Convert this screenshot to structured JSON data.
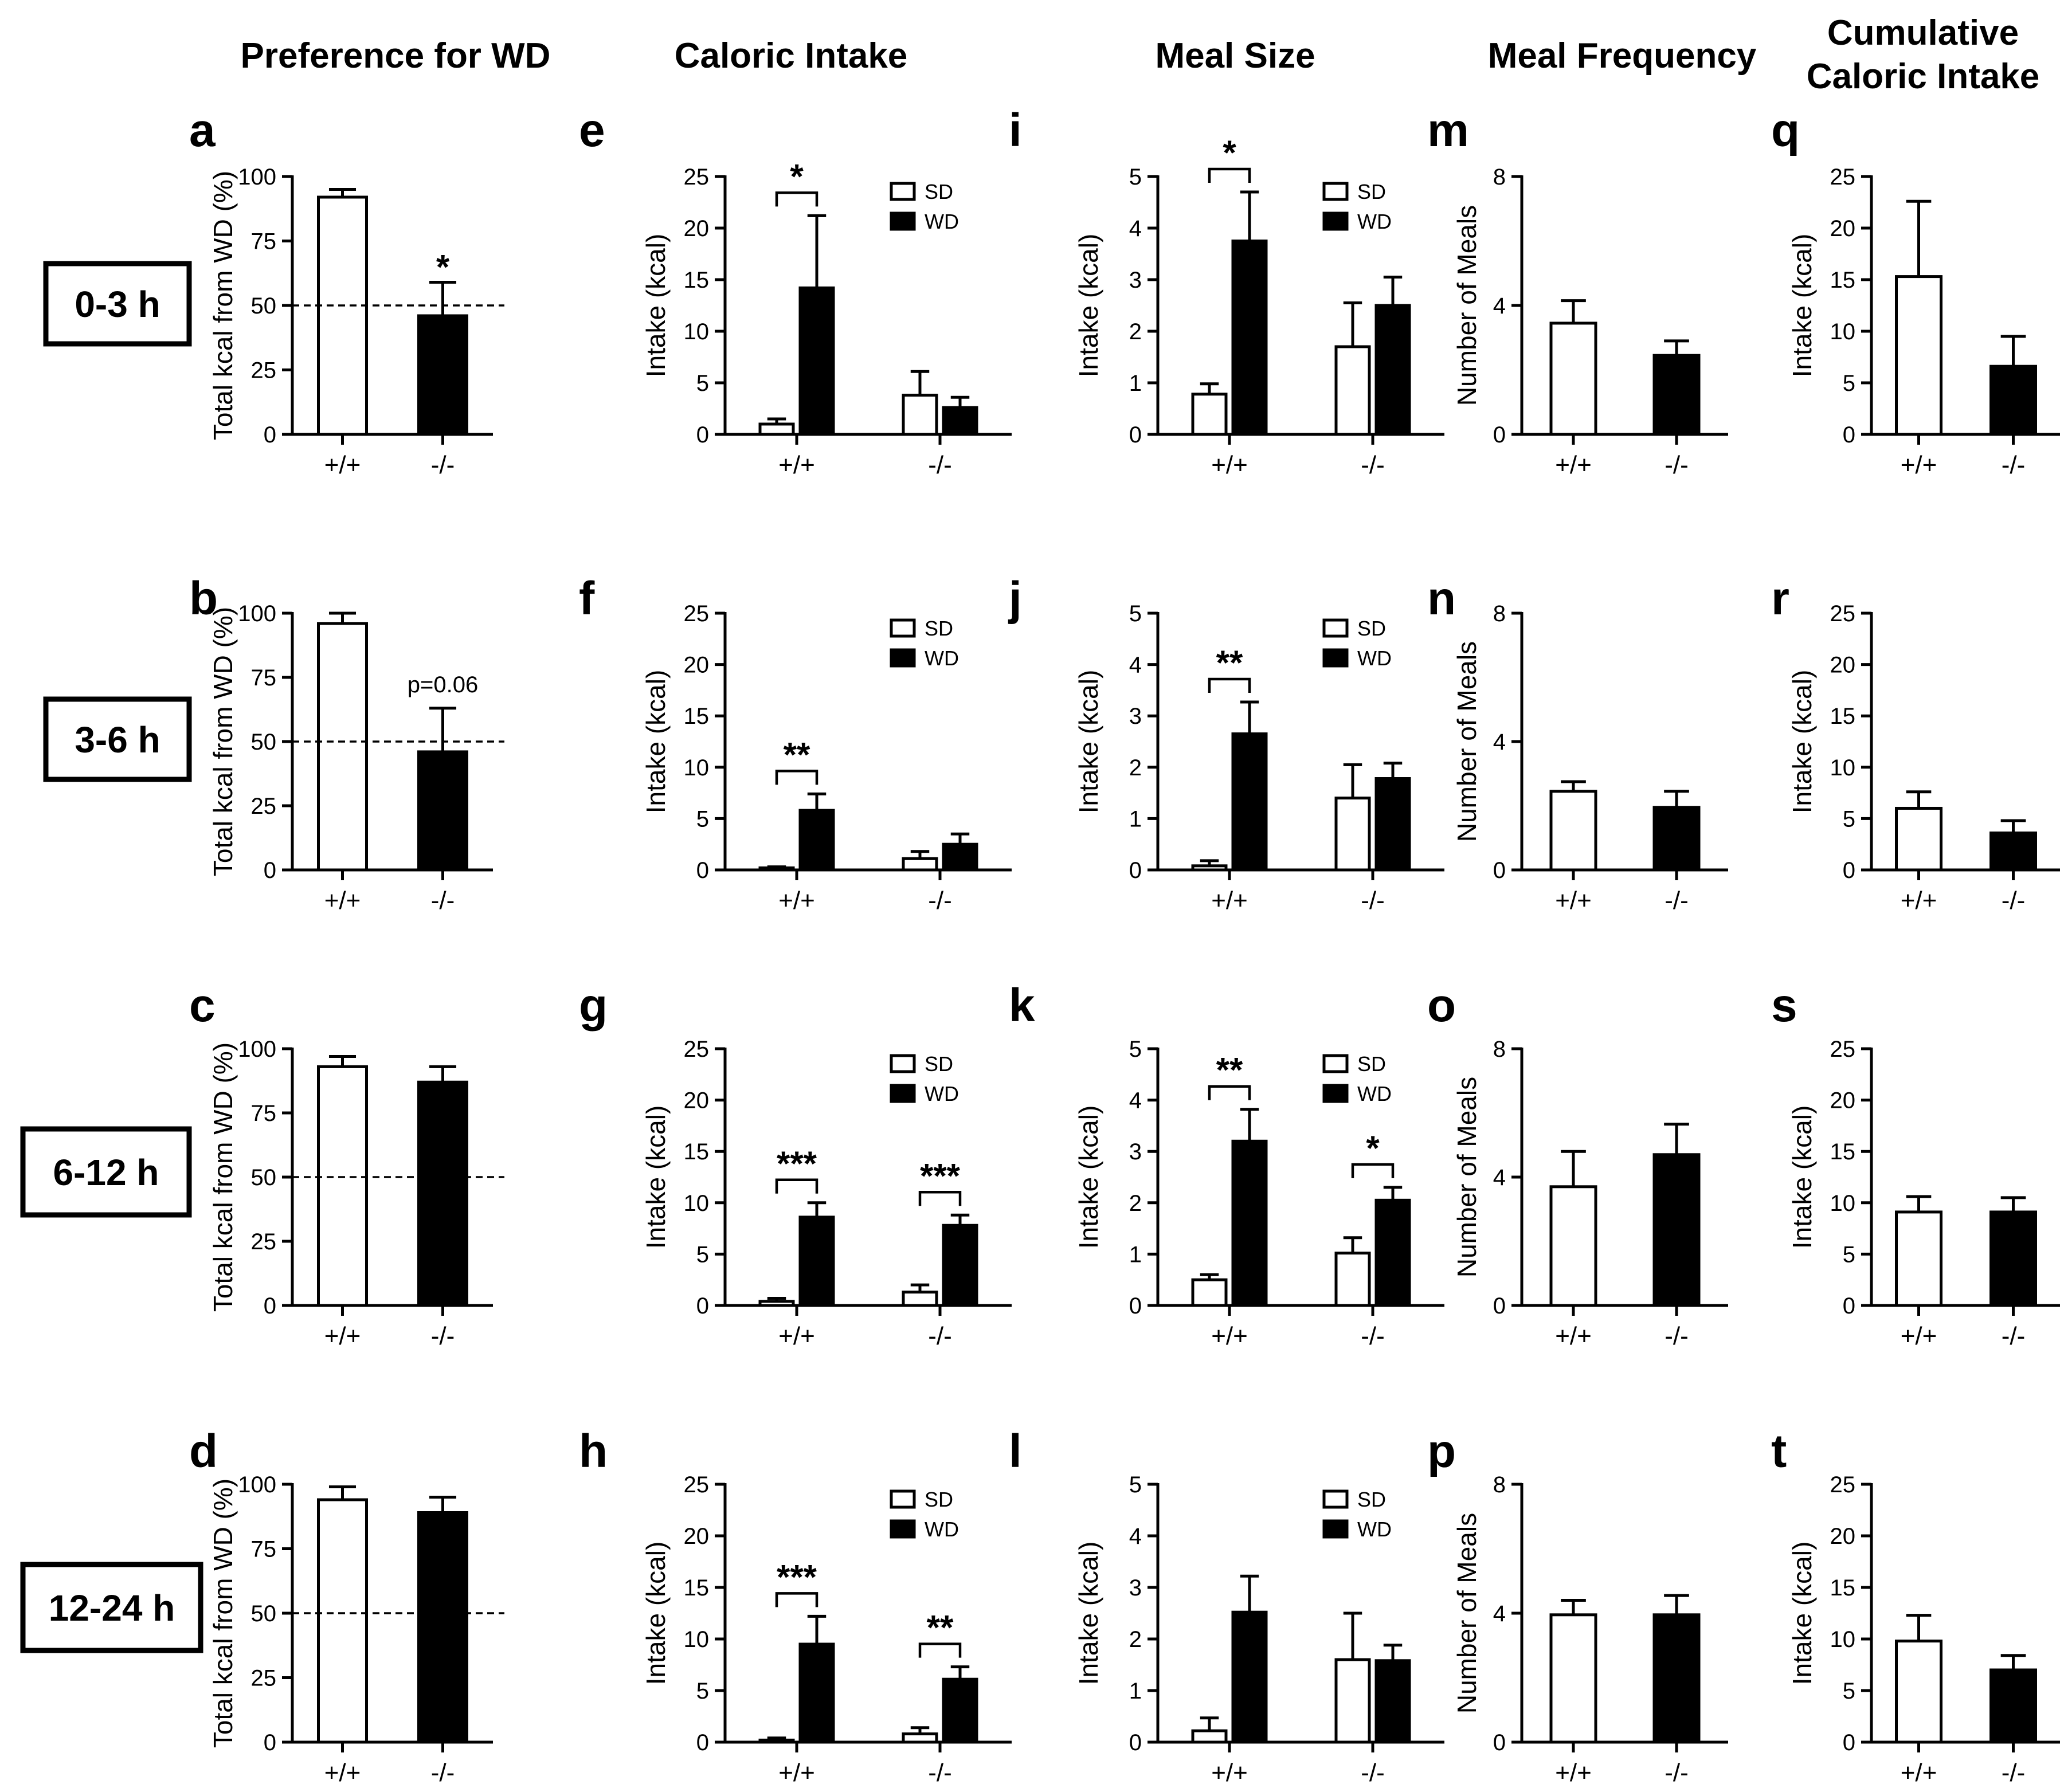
{
  "column_titles": [
    "Preference for WD",
    "Caloric Intake",
    "Meal Size",
    "Meal Frequency",
    "Cumulative Caloric Intake"
  ],
  "row_labels": [
    "0-3 h",
    "3-6 h",
    "6-12 h",
    "12-24 h"
  ],
  "legend": [
    "SD",
    "WD"
  ],
  "colors": {
    "SD": "#ffffff",
    "WD": "#000000",
    "axis": "#000000"
  },
  "chart_data": [
    {
      "panel": "a",
      "type": "bar",
      "col": 0,
      "row": 0,
      "title": "Preference for WD",
      "ylabel": "Total kcal from WD (%)",
      "ylim": [
        0,
        100
      ],
      "yticks": [
        0,
        25,
        50,
        75,
        100
      ],
      "categories": [
        "+/+",
        "-/-"
      ],
      "values": [
        92,
        46
      ],
      "errors": [
        3,
        13
      ],
      "reference_line": 50,
      "annotations": [
        {
          "category": "-/-",
          "text": "*"
        }
      ]
    },
    {
      "panel": "b",
      "type": "bar",
      "col": 0,
      "row": 1,
      "ylabel": "Total kcal from WD (%)",
      "ylim": [
        0,
        100
      ],
      "yticks": [
        0,
        25,
        50,
        75,
        100
      ],
      "categories": [
        "+/+",
        "-/-"
      ],
      "values": [
        96,
        46
      ],
      "errors": [
        4,
        17
      ],
      "reference_line": 50,
      "annotations": [
        {
          "category": "-/-",
          "text": "p=0.06"
        }
      ]
    },
    {
      "panel": "c",
      "type": "bar",
      "col": 0,
      "row": 2,
      "ylabel": "Total kcal from WD (%)",
      "ylim": [
        0,
        100
      ],
      "yticks": [
        0,
        25,
        50,
        75,
        100
      ],
      "categories": [
        "+/+",
        "-/-"
      ],
      "values": [
        93,
        87
      ],
      "errors": [
        4,
        6
      ],
      "reference_line": 50
    },
    {
      "panel": "d",
      "type": "bar",
      "col": 0,
      "row": 3,
      "ylabel": "Total kcal from WD (%)",
      "ylim": [
        0,
        100
      ],
      "yticks": [
        0,
        25,
        50,
        75,
        100
      ],
      "categories": [
        "+/+",
        "-/-"
      ],
      "values": [
        94,
        89
      ],
      "errors": [
        5,
        6
      ],
      "reference_line": 50
    },
    {
      "panel": "e",
      "type": "bar",
      "col": 1,
      "row": 0,
      "title": "Caloric Intake",
      "ylabel": "Intake (kcal)",
      "ylim": [
        0,
        25
      ],
      "yticks": [
        0,
        5,
        10,
        15,
        20,
        25
      ],
      "categories": [
        "+/+",
        "-/-"
      ],
      "series": [
        {
          "name": "SD",
          "values": [
            1.0,
            3.8
          ],
          "errors": [
            0.5,
            2.3
          ]
        },
        {
          "name": "WD",
          "values": [
            14.2,
            2.6
          ],
          "errors": [
            7.0,
            1.0
          ]
        }
      ],
      "significance": [
        {
          "category": "+/+",
          "text": "*"
        }
      ]
    },
    {
      "panel": "f",
      "type": "bar",
      "col": 1,
      "row": 1,
      "ylabel": "Intake (kcal)",
      "ylim": [
        0,
        25
      ],
      "yticks": [
        0,
        5,
        10,
        15,
        20,
        25
      ],
      "categories": [
        "+/+",
        "-/-"
      ],
      "series": [
        {
          "name": "SD",
          "values": [
            0.2,
            1.1
          ],
          "errors": [
            0.1,
            0.7
          ]
        },
        {
          "name": "WD",
          "values": [
            5.8,
            2.5
          ],
          "errors": [
            1.6,
            1.0
          ]
        }
      ],
      "significance": [
        {
          "category": "+/+",
          "text": "**"
        }
      ]
    },
    {
      "panel": "g",
      "type": "bar",
      "col": 1,
      "row": 2,
      "ylabel": "Intake (kcal)",
      "ylim": [
        0,
        25
      ],
      "yticks": [
        0,
        5,
        10,
        15,
        20,
        25
      ],
      "categories": [
        "+/+",
        "-/-"
      ],
      "series": [
        {
          "name": "SD",
          "values": [
            0.4,
            1.3
          ],
          "errors": [
            0.3,
            0.7
          ]
        },
        {
          "name": "WD",
          "values": [
            8.6,
            7.8
          ],
          "errors": [
            1.4,
            1.0
          ]
        }
      ],
      "significance": [
        {
          "category": "+/+",
          "text": "***"
        },
        {
          "category": "-/-",
          "text": "***"
        }
      ]
    },
    {
      "panel": "h",
      "type": "bar",
      "col": 1,
      "row": 3,
      "ylabel": "Intake (kcal)",
      "ylim": [
        0,
        25
      ],
      "yticks": [
        0,
        5,
        10,
        15,
        20,
        25
      ],
      "categories": [
        "+/+",
        "-/-"
      ],
      "series": [
        {
          "name": "SD",
          "values": [
            0.2,
            0.8
          ],
          "errors": [
            0.2,
            0.6
          ]
        },
        {
          "name": "WD",
          "values": [
            9.5,
            6.1
          ],
          "errors": [
            2.7,
            1.2
          ]
        }
      ],
      "significance": [
        {
          "category": "+/+",
          "text": "***"
        },
        {
          "category": "-/-",
          "text": "**"
        }
      ]
    },
    {
      "panel": "i",
      "type": "bar",
      "col": 2,
      "row": 0,
      "title": "Meal Size",
      "ylabel": "Intake (kcal)",
      "ylim": [
        0,
        5
      ],
      "yticks": [
        0,
        1,
        2,
        3,
        4,
        5
      ],
      "categories": [
        "+/+",
        "-/-"
      ],
      "series": [
        {
          "name": "SD",
          "values": [
            0.78,
            1.7
          ],
          "errors": [
            0.2,
            0.85
          ]
        },
        {
          "name": "WD",
          "values": [
            3.75,
            2.5
          ],
          "errors": [
            0.95,
            0.55
          ]
        }
      ],
      "significance": [
        {
          "category": "+/+",
          "text": "*"
        }
      ]
    },
    {
      "panel": "j",
      "type": "bar",
      "col": 2,
      "row": 1,
      "ylabel": "Intake (kcal)",
      "ylim": [
        0,
        5
      ],
      "yticks": [
        0,
        1,
        2,
        3,
        4,
        5
      ],
      "categories": [
        "+/+",
        "-/-"
      ],
      "series": [
        {
          "name": "SD",
          "values": [
            0.08,
            1.4
          ],
          "errors": [
            0.1,
            0.65
          ]
        },
        {
          "name": "WD",
          "values": [
            2.65,
            1.78
          ],
          "errors": [
            0.62,
            0.3
          ]
        }
      ],
      "significance": [
        {
          "category": "+/+",
          "text": "**"
        }
      ]
    },
    {
      "panel": "k",
      "type": "bar",
      "col": 2,
      "row": 2,
      "ylabel": "Intake (kcal)",
      "ylim": [
        0,
        5
      ],
      "yticks": [
        0,
        1,
        2,
        3,
        4,
        5
      ],
      "categories": [
        "+/+",
        "-/-"
      ],
      "series": [
        {
          "name": "SD",
          "values": [
            0.5,
            1.02
          ],
          "errors": [
            0.1,
            0.3
          ]
        },
        {
          "name": "WD",
          "values": [
            3.2,
            2.05
          ],
          "errors": [
            0.62,
            0.25
          ]
        }
      ],
      "significance": [
        {
          "category": "+/+",
          "text": "**"
        },
        {
          "category": "-/-",
          "text": "*"
        }
      ]
    },
    {
      "panel": "l",
      "type": "bar",
      "col": 2,
      "row": 3,
      "ylabel": "Intake (kcal)",
      "ylim": [
        0,
        5
      ],
      "yticks": [
        0,
        1,
        2,
        3,
        4,
        5
      ],
      "categories": [
        "+/+",
        "-/-"
      ],
      "series": [
        {
          "name": "SD",
          "values": [
            0.22,
            1.6
          ],
          "errors": [
            0.25,
            0.9
          ]
        },
        {
          "name": "WD",
          "values": [
            2.52,
            1.58
          ],
          "errors": [
            0.7,
            0.3
          ]
        }
      ]
    },
    {
      "panel": "m",
      "type": "bar",
      "col": 3,
      "row": 0,
      "title": "Meal Frequency",
      "ylabel": "Number of Meals",
      "ylim": [
        0,
        8
      ],
      "yticks": [
        0,
        4,
        8
      ],
      "categories": [
        "+/+",
        "-/-"
      ],
      "values": [
        3.45,
        2.45
      ],
      "errors": [
        0.7,
        0.45
      ]
    },
    {
      "panel": "n",
      "type": "bar",
      "col": 3,
      "row": 1,
      "ylabel": "Number of Meals",
      "ylim": [
        0,
        8
      ],
      "yticks": [
        0,
        4,
        8
      ],
      "categories": [
        "+/+",
        "-/-"
      ],
      "values": [
        2.45,
        1.95
      ],
      "errors": [
        0.3,
        0.5
      ]
    },
    {
      "panel": "o",
      "type": "bar",
      "col": 3,
      "row": 2,
      "ylabel": "Number of Meals",
      "ylim": [
        0,
        8
      ],
      "yticks": [
        0,
        4,
        8
      ],
      "categories": [
        "+/+",
        "-/-"
      ],
      "values": [
        3.7,
        4.7
      ],
      "errors": [
        1.1,
        0.95
      ]
    },
    {
      "panel": "p",
      "type": "bar",
      "col": 3,
      "row": 3,
      "ylabel": "Number of Meals",
      "ylim": [
        0,
        8
      ],
      "yticks": [
        0,
        4,
        8
      ],
      "categories": [
        "+/+",
        "-/-"
      ],
      "values": [
        3.95,
        3.95
      ],
      "errors": [
        0.45,
        0.6
      ]
    },
    {
      "panel": "q",
      "type": "bar",
      "col": 4,
      "row": 0,
      "title": "Cumulative Caloric Intake",
      "ylabel": "Intake (kcal)",
      "ylim": [
        0,
        25
      ],
      "yticks": [
        0,
        5,
        10,
        15,
        20,
        25
      ],
      "categories": [
        "+/+",
        "-/-"
      ],
      "values": [
        15.3,
        6.6
      ],
      "errors": [
        7.3,
        2.9
      ]
    },
    {
      "panel": "r",
      "type": "bar",
      "col": 4,
      "row": 1,
      "ylabel": "Intake (kcal)",
      "ylim": [
        0,
        25
      ],
      "yticks": [
        0,
        5,
        10,
        15,
        20,
        25
      ],
      "categories": [
        "+/+",
        "-/-"
      ],
      "values": [
        6.0,
        3.6
      ],
      "errors": [
        1.6,
        1.2
      ]
    },
    {
      "panel": "s",
      "type": "bar",
      "col": 4,
      "row": 2,
      "ylabel": "Intake (kcal)",
      "ylim": [
        0,
        25
      ],
      "yticks": [
        0,
        5,
        10,
        15,
        20,
        25
      ],
      "categories": [
        "+/+",
        "-/-"
      ],
      "values": [
        9.1,
        9.1
      ],
      "errors": [
        1.5,
        1.4
      ]
    },
    {
      "panel": "t",
      "type": "bar",
      "col": 4,
      "row": 3,
      "ylabel": "Intake (kcal)",
      "ylim": [
        0,
        25
      ],
      "yticks": [
        0,
        5,
        10,
        15,
        20,
        25
      ],
      "categories": [
        "+/+",
        "-/-"
      ],
      "values": [
        9.8,
        7.0
      ],
      "errors": [
        2.5,
        1.4
      ]
    }
  ]
}
